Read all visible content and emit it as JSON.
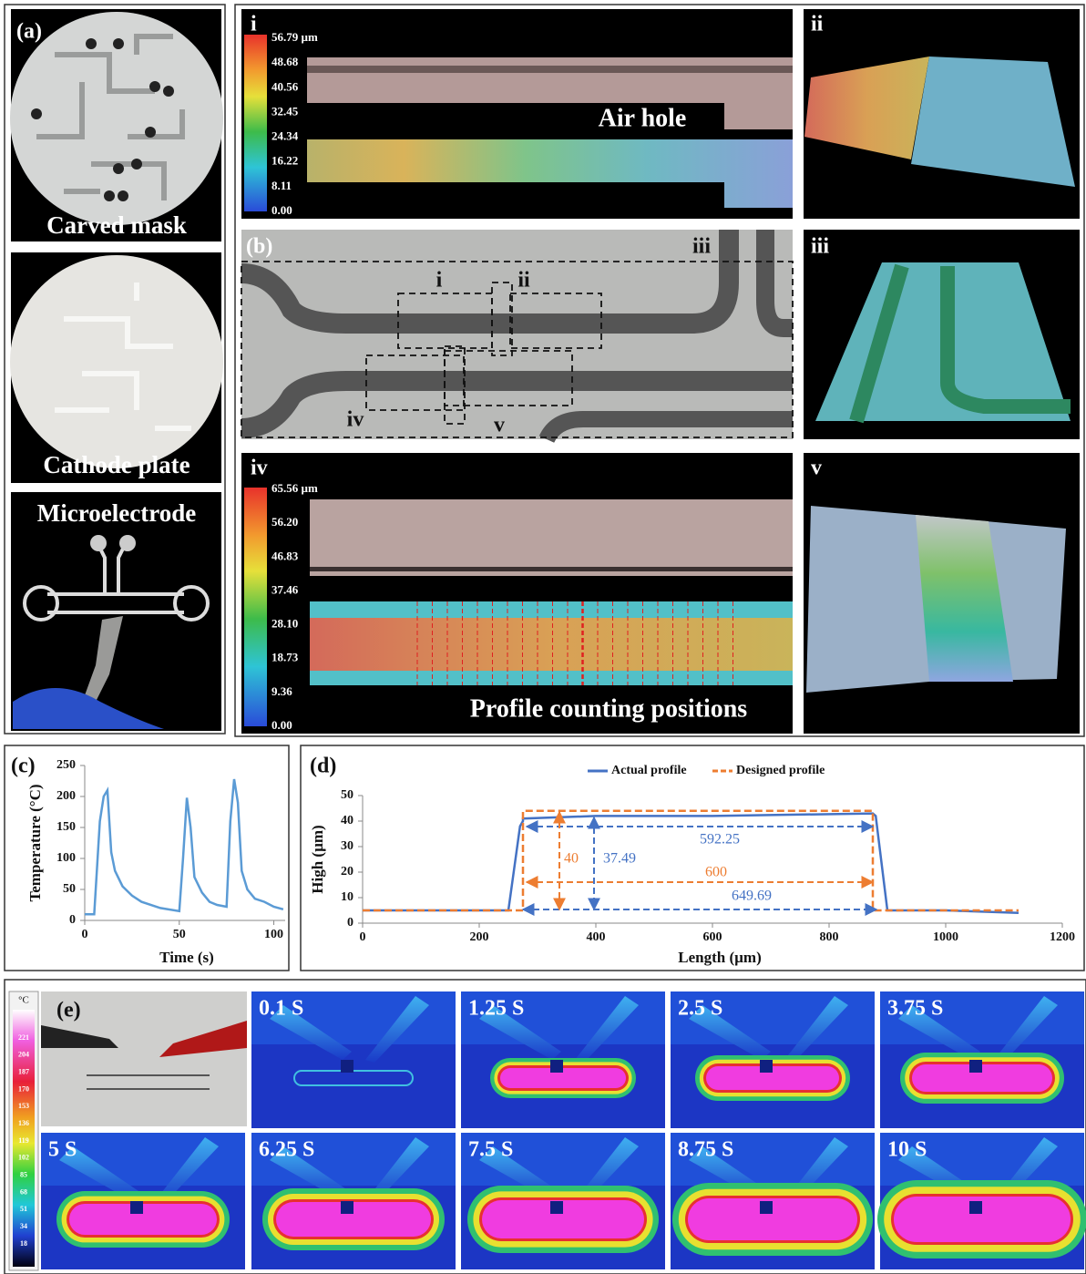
{
  "panel_a": {
    "label": "(a)",
    "captions": [
      "Carved mask",
      "Cathode plate",
      "Microelectrode"
    ]
  },
  "panel_b": {
    "label": "(b)",
    "corner_labels": [
      "i",
      "ii",
      "iii",
      "iv",
      "v"
    ],
    "box_labels": [
      "i",
      "ii",
      "iii",
      "iv",
      "v"
    ],
    "air_hole": "Air hole",
    "profile_caption": "Profile counting positions",
    "colorbar_i": [
      "56.79 µm",
      "48.68",
      "40.56",
      "32.45",
      "24.34",
      "16.22",
      "8.11",
      "0.00"
    ],
    "colorbar_iv": [
      "65.56 µm",
      "56.20",
      "46.83",
      "37.46",
      "28.10",
      "18.73",
      "9.36",
      "0.00"
    ]
  },
  "panel_e": {
    "label": "(e)",
    "unit": "°C",
    "colorbar": [
      "221",
      "204",
      "187",
      "170",
      "153",
      "136",
      "119",
      "102",
      "85",
      "68",
      "51",
      "34",
      "18"
    ],
    "times": [
      "0.1 S",
      "1.25 S",
      "2.5 S",
      "3.75 S",
      "5 S",
      "6.25 S",
      "7.5 S",
      "8.75 S",
      "10 S"
    ]
  },
  "chart_data": [
    {
      "type": "line",
      "label": "(c)",
      "x_label": "Time (s)",
      "y_label": "Temperature (°C)",
      "x": [
        0,
        5,
        8,
        10,
        12,
        14,
        16,
        20,
        25,
        30,
        40,
        50,
        52,
        54,
        56,
        58,
        62,
        66,
        70,
        75,
        77,
        79,
        81,
        83,
        86,
        90,
        95,
        100,
        105
      ],
      "series": [
        {
          "color": "#5b9bd5",
          "values": [
            10,
            10,
            160,
            200,
            210,
            110,
            80,
            55,
            40,
            30,
            20,
            15,
            100,
            198,
            150,
            70,
            45,
            30,
            25,
            22,
            160,
            228,
            190,
            80,
            50,
            35,
            30,
            22,
            18
          ]
        }
      ],
      "xlim": [
        0,
        106
      ],
      "xticks": [
        0,
        50,
        100
      ],
      "ylim": [
        0,
        250
      ],
      "yticks": [
        0,
        50,
        100,
        150,
        200,
        250
      ]
    },
    {
      "type": "line",
      "label": "(d)",
      "x_label": "Length (µm)",
      "y_label": "High (µm)",
      "legend": "top",
      "x": [
        0,
        200,
        250,
        270,
        275,
        275,
        400,
        600,
        875,
        875,
        880,
        900,
        1000,
        1125
      ],
      "series": [
        {
          "name": "Actual profile",
          "color": "#4472c4",
          "dash": false,
          "values": [
            5,
            5,
            5,
            38,
            40,
            41,
            42,
            42,
            43,
            43,
            42,
            5,
            5,
            4
          ]
        },
        {
          "name": "Designed profile",
          "color": "#ed7d31",
          "dash": true,
          "values": [
            5,
            5,
            5,
            5,
            5,
            44,
            44,
            44,
            44,
            5,
            5,
            5,
            5,
            5
          ]
        }
      ],
      "annotations": [
        "592.25",
        "649.69",
        "600",
        "40",
        "37.49"
      ],
      "xlim": [
        0,
        1200
      ],
      "xticks": [
        0,
        200,
        400,
        600,
        800,
        1000,
        1200
      ],
      "ylim": [
        0,
        50
      ],
      "yticks": [
        0,
        10,
        20,
        30,
        40,
        50
      ]
    }
  ]
}
